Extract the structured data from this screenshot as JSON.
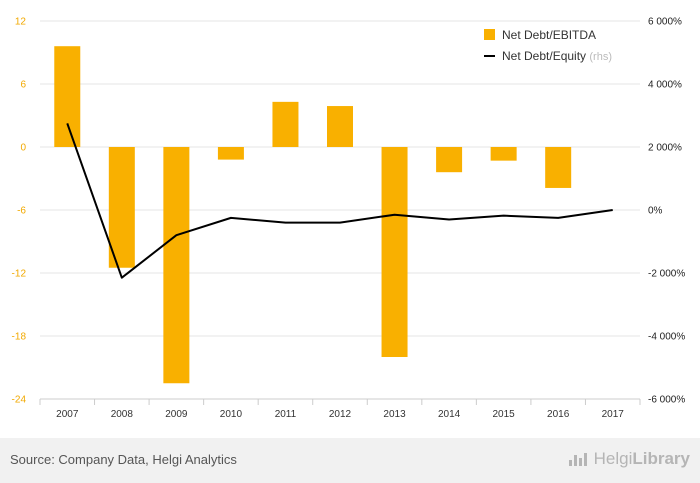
{
  "chart_data": {
    "type": "bar+line",
    "categories": [
      "2007",
      "2008",
      "2009",
      "2010",
      "2011",
      "2012",
      "2013",
      "2014",
      "2015",
      "2016",
      "2017"
    ],
    "series": [
      {
        "name": "Net Debt/EBITDA",
        "type": "bar",
        "axis": "left",
        "color": "#f9b000",
        "values": [
          9.6,
          -11.5,
          -22.5,
          -1.2,
          4.3,
          3.9,
          -20.0,
          -2.4,
          -1.3,
          -3.9,
          null
        ]
      },
      {
        "name": "Net Debt/Equity",
        "name_suffix": "(rhs)",
        "type": "line",
        "axis": "right",
        "color": "#000000",
        "values": [
          2750,
          -2150,
          -800,
          -250,
          -400,
          -400,
          -150,
          -300,
          -180,
          -250,
          0
        ]
      }
    ],
    "y_left": {
      "ticks": [
        "12",
        "6",
        "0",
        "-6",
        "-12",
        "-18",
        "-24"
      ],
      "range": [
        -24,
        12
      ]
    },
    "y_right": {
      "ticks": [
        "6 000%",
        "4 000%",
        "2 000%",
        "0%",
        "-2 000%",
        "-4 000%",
        "-6 000%"
      ],
      "range": [
        -6000,
        6000
      ]
    },
    "legend_position": "top-right",
    "grid": true
  },
  "footer": {
    "source": "Source: Company Data, Helgi Analytics",
    "logo_text_a": "Helgi",
    "logo_text_b": "Library"
  },
  "colors": {
    "bar": "#f9b000",
    "line": "#000000",
    "grid": "#e6e6e6",
    "left_axis_text": "#f2a900"
  }
}
